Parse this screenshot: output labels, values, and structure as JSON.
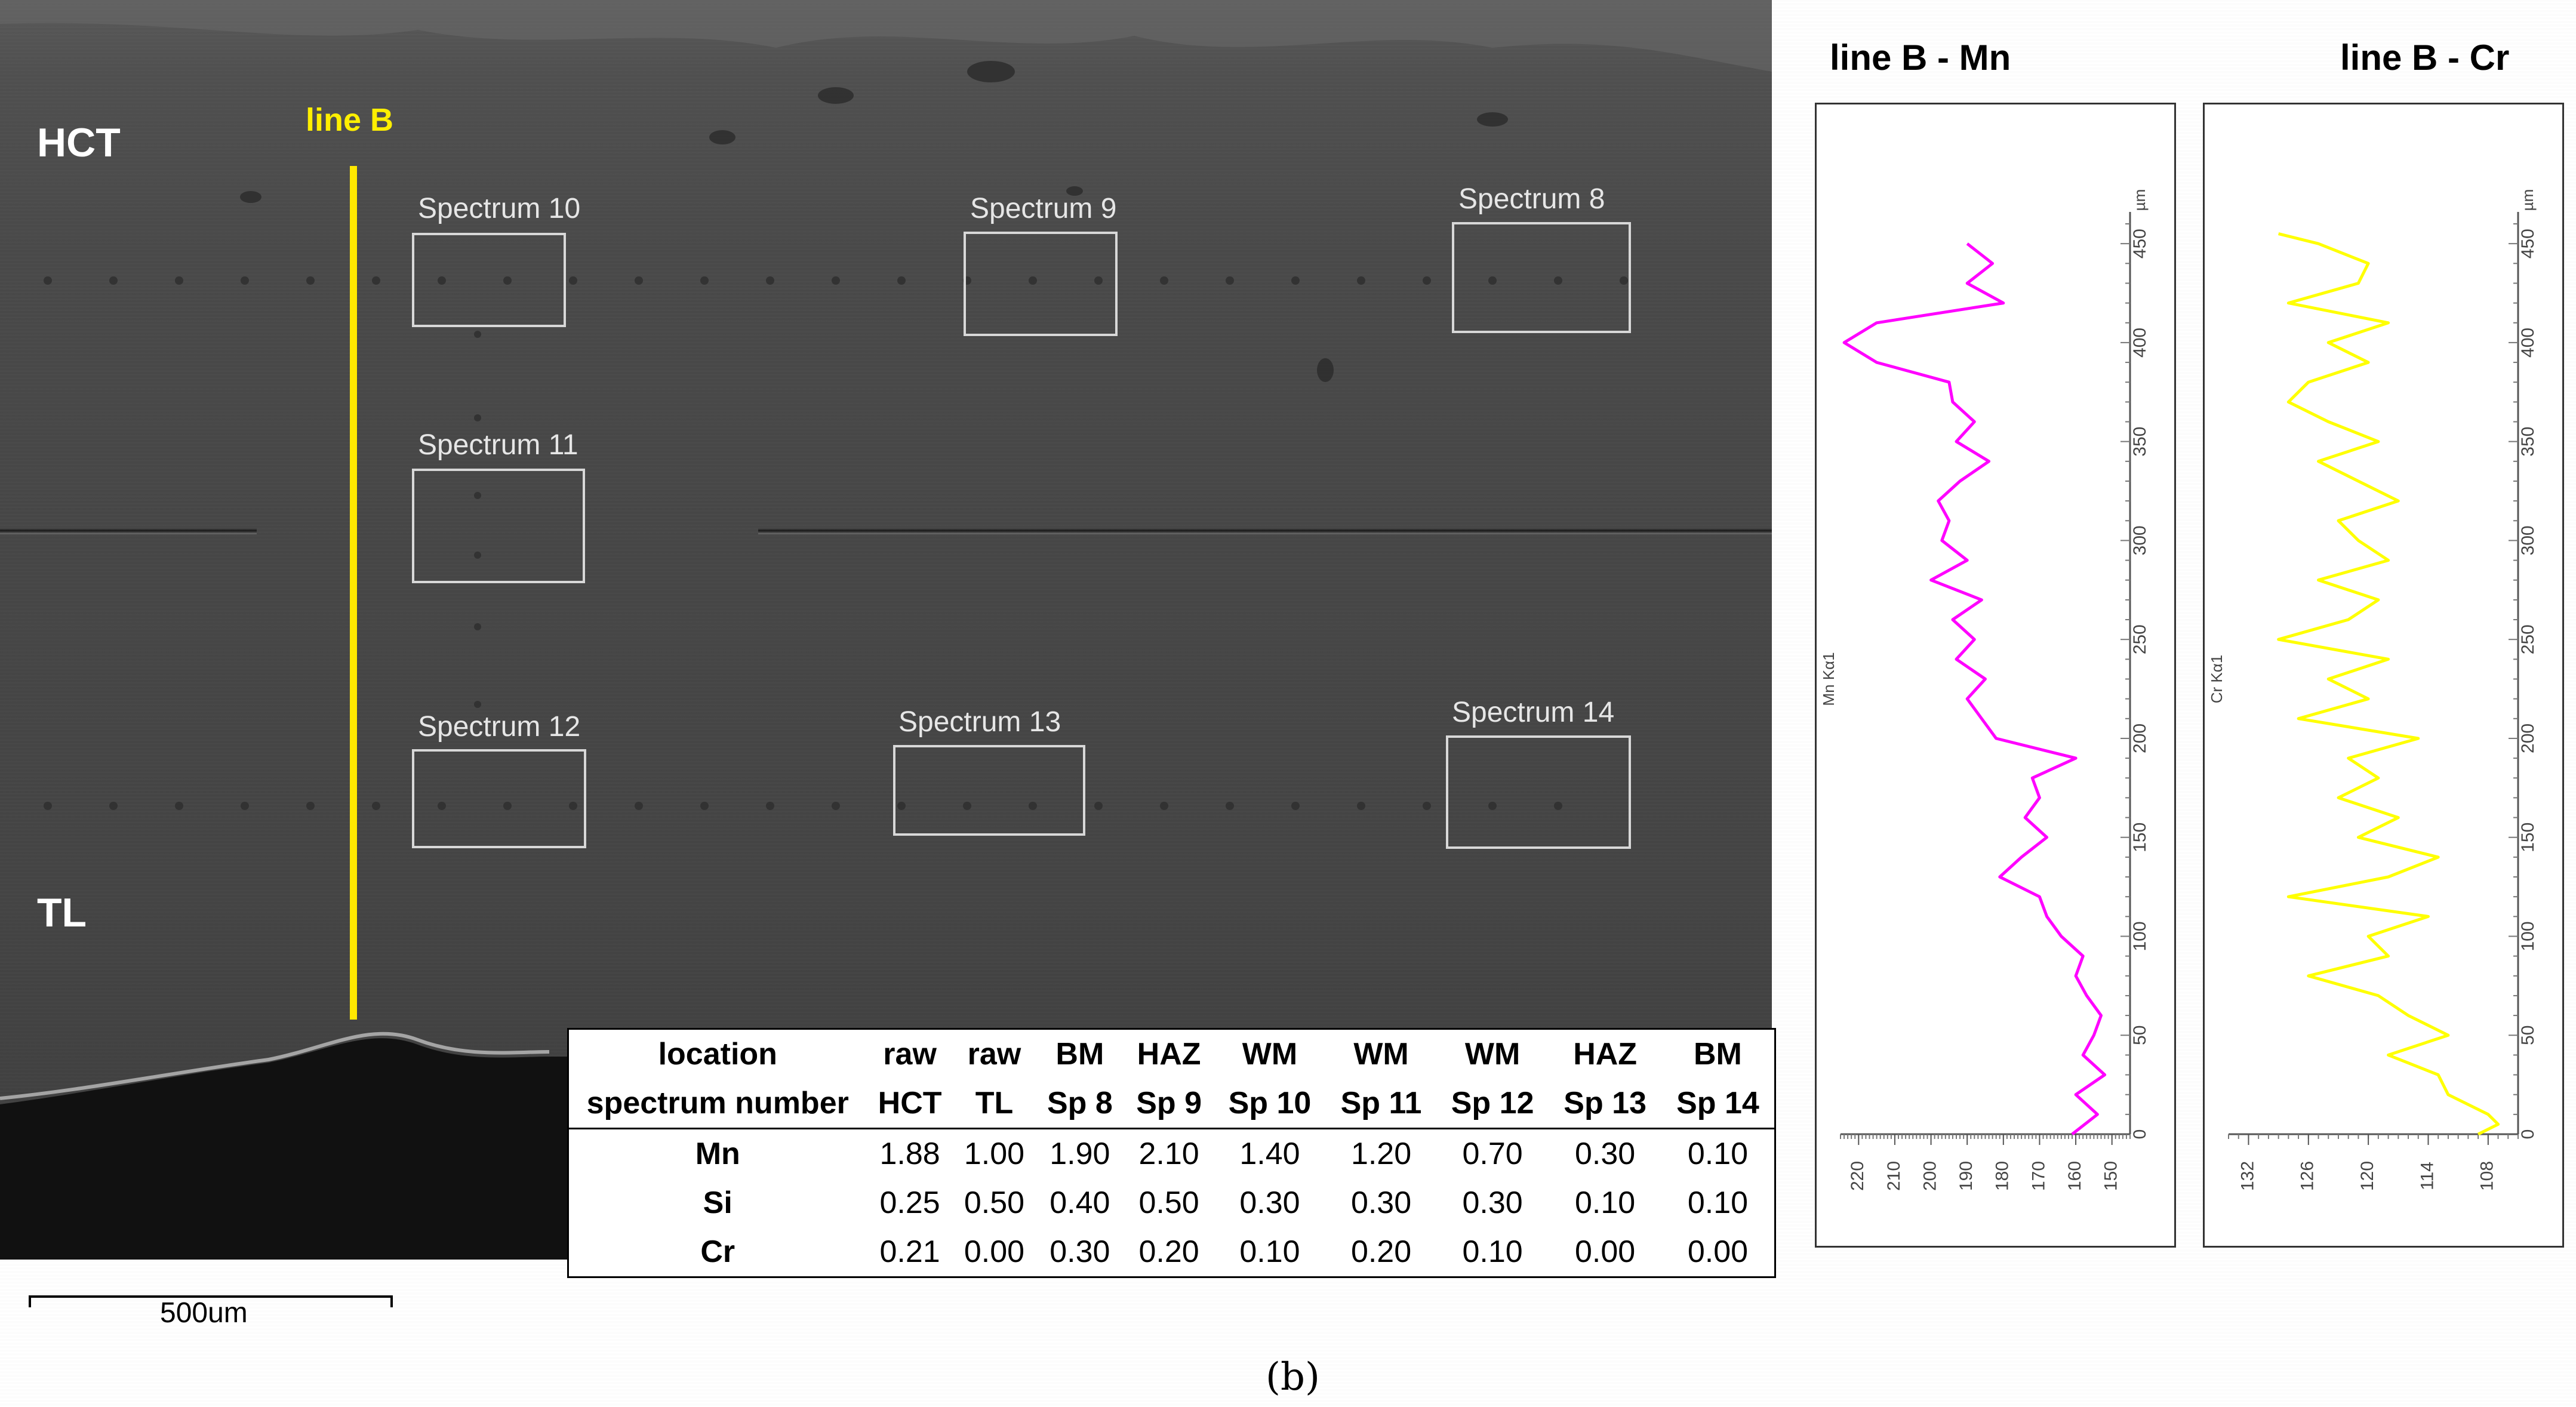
{
  "micrograph": {
    "label_top": "HCT",
    "label_bottom": "TL",
    "line_label": "line B",
    "spectra": [
      "Spectrum 10",
      "Spectrum 9",
      "Spectrum 8",
      "Spectrum 11",
      "Spectrum 12",
      "Spectrum 13",
      "Spectrum 14"
    ],
    "scale_label": "500um"
  },
  "table": {
    "header_row1": [
      "location",
      "raw",
      "raw",
      "BM",
      "HAZ",
      "WM",
      "WM",
      "WM",
      "HAZ",
      "BM"
    ],
    "header_row2": [
      "spectrum number",
      "HCT",
      "TL",
      "Sp 8",
      "Sp 9",
      "Sp 10",
      "Sp 11",
      "Sp 12",
      "Sp 13",
      "Sp 14"
    ],
    "rows": [
      {
        "label": "Mn",
        "values": [
          "1.88",
          "1.00",
          "1.90",
          "2.10",
          "1.40",
          "1.20",
          "0.70",
          "0.30",
          "0.10"
        ]
      },
      {
        "label": "Si",
        "values": [
          "0.25",
          "0.50",
          "0.40",
          "0.50",
          "0.30",
          "0.30",
          "0.30",
          "0.10",
          "0.10"
        ]
      },
      {
        "label": "Cr",
        "values": [
          "0.21",
          "0.00",
          "0.30",
          "0.20",
          "0.10",
          "0.20",
          "0.10",
          "0.00",
          "0.00"
        ]
      }
    ]
  },
  "caption": "(b)",
  "chart_data": [
    {
      "type": "line",
      "title": "line B - Mn",
      "xlabel": "Mn Kα1",
      "ylabel": "µm",
      "x_ticks": [
        "220",
        "210",
        "200",
        "190",
        "180",
        "170",
        "160",
        "150"
      ],
      "y_ticks": [
        "0",
        "50",
        "100",
        "150",
        "200",
        "250",
        "300",
        "350",
        "400",
        "450"
      ],
      "xlim": [
        225,
        145
      ],
      "ylim": [
        0,
        460
      ],
      "color": "#ff00ff",
      "y": [
        0,
        10,
        20,
        30,
        40,
        50,
        60,
        70,
        80,
        90,
        100,
        110,
        120,
        130,
        140,
        150,
        160,
        170,
        180,
        190,
        200,
        210,
        220,
        230,
        240,
        250,
        260,
        270,
        280,
        290,
        300,
        310,
        320,
        330,
        340,
        350,
        360,
        370,
        380,
        390,
        400,
        410,
        420,
        430,
        440,
        450
      ],
      "x": [
        161,
        154,
        160,
        152,
        158,
        155,
        153,
        157,
        160,
        158,
        164,
        168,
        170,
        181,
        175,
        168,
        174,
        170,
        172,
        160,
        182,
        186,
        190,
        185,
        193,
        188,
        194,
        186,
        200,
        190,
        197,
        195,
        198,
        192,
        184,
        193,
        188,
        194,
        195,
        215,
        224,
        215,
        180,
        190,
        183,
        190
      ]
    },
    {
      "type": "line",
      "title": "line B - Cr",
      "xlabel": "Cr Kα1",
      "ylabel": "µm",
      "x_ticks": [
        "132",
        "126",
        "120",
        "114",
        "108"
      ],
      "y_ticks": [
        "0",
        "50",
        "100",
        "150",
        "200",
        "250",
        "300",
        "350",
        "400",
        "450"
      ],
      "xlim": [
        134,
        105
      ],
      "ylim": [
        0,
        460
      ],
      "color": "#ffff00",
      "y": [
        0,
        5,
        10,
        20,
        30,
        40,
        50,
        60,
        70,
        80,
        90,
        100,
        110,
        120,
        130,
        140,
        150,
        160,
        170,
        180,
        190,
        200,
        210,
        220,
        230,
        240,
        250,
        260,
        270,
        280,
        290,
        300,
        310,
        320,
        330,
        340,
        350,
        360,
        370,
        380,
        390,
        400,
        410,
        420,
        430,
        440,
        450,
        455
      ],
      "x": [
        109,
        107,
        108,
        112,
        113,
        118,
        112,
        116,
        119,
        126,
        118,
        120,
        114,
        128,
        118,
        113,
        121,
        117,
        123,
        119,
        122,
        115,
        127,
        120,
        124,
        118,
        129,
        122,
        119,
        125,
        118,
        121,
        123,
        117,
        121,
        125,
        119,
        124,
        128,
        126,
        120,
        124,
        118,
        128,
        121,
        120,
        125,
        129
      ]
    }
  ]
}
